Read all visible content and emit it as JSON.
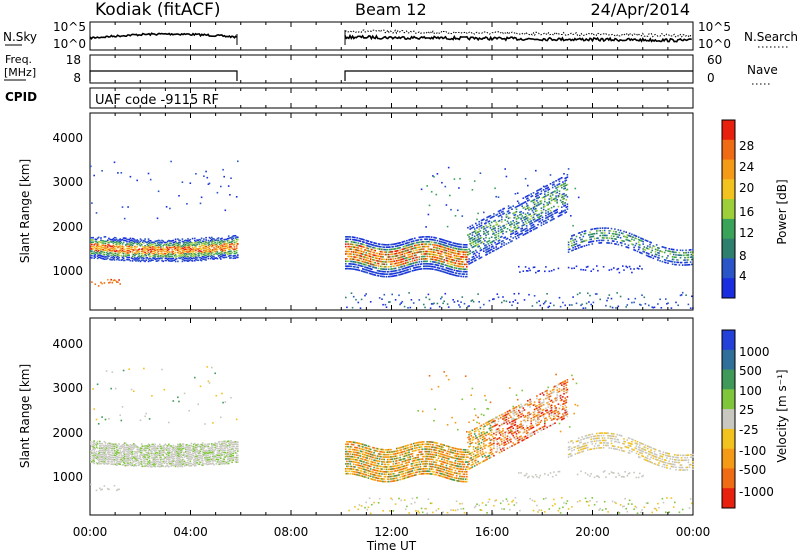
{
  "header": {
    "station": "Kodiak (fitACF)",
    "beam": "Beam 12",
    "date": "24/Apr/2014"
  },
  "noise_panel": {
    "left_label": "N.Sky",
    "right_label": "N.Search",
    "left_ticks": [
      "10^5",
      "10^0"
    ],
    "right_ticks": [
      "10^5",
      "10^0"
    ]
  },
  "freq_panel": {
    "left_label_1": "Freq.",
    "left_label_2": "[MHz]",
    "right_label": "Nave",
    "left_ticks": [
      "18",
      "8"
    ],
    "right_ticks": [
      "60",
      "0"
    ]
  },
  "cpid_panel": {
    "label": "CPID",
    "text": "UAF code -9115 RF"
  },
  "chart_data": [
    {
      "type": "heatmap",
      "quantity": "Power",
      "ylabel": "Slant Range [km]",
      "ylim": [
        180,
        4600
      ],
      "yticks": [
        "1000",
        "2000",
        "3000",
        "4000"
      ],
      "colorbar_label": "Power [dB]",
      "colorbar_ticks": [
        "4",
        "8",
        "12",
        "16",
        "20",
        "24",
        "28"
      ],
      "colors": [
        "#1a2ee0",
        "#2a55c8",
        "#2f7f6f",
        "#3aa35a",
        "#9ccf3a",
        "#f2c21e",
        "#f59a17",
        "#ef6b14",
        "#e8200e"
      ]
    },
    {
      "type": "heatmap",
      "quantity": "Velocity",
      "ylabel": "Slant Range [km]",
      "ylim": [
        180,
        4600
      ],
      "yticks": [
        "1000",
        "2000",
        "3000",
        "4000"
      ],
      "colorbar_label": "Velocity [m s⁻¹]",
      "colorbar_ticks": [
        "1000",
        "500",
        "100",
        "25",
        "-25",
        "-100",
        "-500",
        "-1000"
      ],
      "colors": [
        "#2340d8",
        "#2f6f9a",
        "#3f9a5a",
        "#7fc63a",
        "#c8c8c0",
        "#f2c21e",
        "#f59a17",
        "#ef6b14",
        "#e8200e"
      ]
    }
  ],
  "time_axis": {
    "label": "Time UT",
    "ticks": [
      "00:00",
      "04:00",
      "08:00",
      "12:00",
      "16:00",
      "20:00",
      "00:00"
    ]
  }
}
